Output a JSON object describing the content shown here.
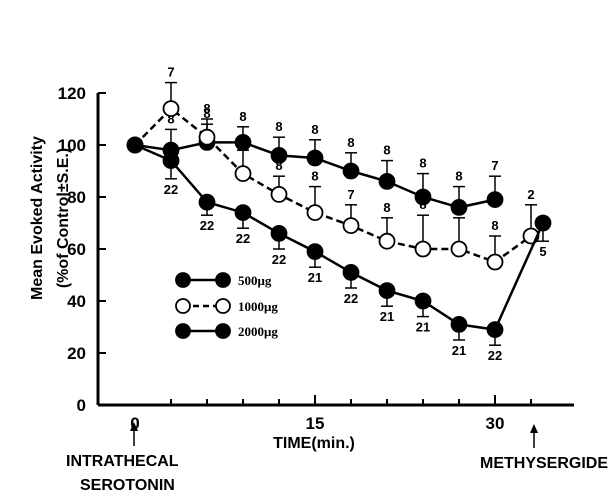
{
  "chart_data": {
    "type": "line",
    "title": "",
    "xlabel": "TIME(min.)",
    "ylabel_line1": "Mean Evoked Activity",
    "ylabel_line2": "(%of Control±S.E.)",
    "xlim": [
      -3,
      36
    ],
    "ylim": [
      0,
      120
    ],
    "x_ticks": [
      "0",
      "15",
      "30"
    ],
    "y_ticks": [
      "0",
      "20",
      "40",
      "60",
      "80",
      "100",
      "120"
    ],
    "legend_placement": "lower-left",
    "annotations": [
      {
        "text": "INTRATHECAL",
        "x": 0
      },
      {
        "text": "SEROTONIN",
        "x": 0
      },
      {
        "text": "METHYSERGIDE",
        "x": 33
      }
    ],
    "series": [
      {
        "name": "500μg",
        "marker": "filled",
        "line_style": "solid",
        "x": [
          0,
          3,
          6,
          9,
          12,
          15,
          18,
          21,
          24,
          27,
          30
        ],
        "y": [
          100,
          98,
          101,
          101,
          96,
          95,
          90,
          86,
          80,
          76,
          79
        ],
        "err": [
          0,
          8,
          7,
          6,
          7,
          7,
          7,
          8,
          9,
          8,
          9
        ],
        "n": [
          "",
          "8",
          "8",
          "8",
          "8",
          "8",
          "8",
          "8",
          "8",
          "8",
          "7"
        ]
      },
      {
        "name": "1000μg",
        "marker": "open",
        "line_style": "dashed",
        "x": [
          0,
          3,
          6,
          9,
          12,
          15,
          18,
          21,
          24,
          27,
          30,
          33
        ],
        "y": [
          100,
          114,
          103,
          89,
          81,
          74,
          69,
          63,
          60,
          60,
          55,
          65
        ],
        "err": [
          0,
          10,
          7,
          9,
          7,
          10,
          8,
          9,
          13,
          12,
          10,
          12
        ],
        "n": [
          "",
          "7",
          "8",
          "8",
          "8",
          "8",
          "7",
          "8",
          "8",
          "8",
          "8",
          "2"
        ]
      },
      {
        "name": "2000μg",
        "marker": "filled",
        "line_style": "solid",
        "x": [
          0,
          3,
          6,
          9,
          12,
          15,
          18,
          21,
          24,
          27,
          30,
          34
        ],
        "y": [
          100,
          94,
          78,
          74,
          66,
          59,
          51,
          44,
          40,
          31,
          29,
          70
        ],
        "err": [
          0,
          7,
          5,
          6,
          6,
          6,
          6,
          6,
          6,
          6,
          6,
          7
        ],
        "n": [
          "",
          "22",
          "22",
          "22",
          "22",
          "21",
          "22",
          "21",
          "21",
          "21",
          "22",
          "5"
        ]
      }
    ]
  }
}
